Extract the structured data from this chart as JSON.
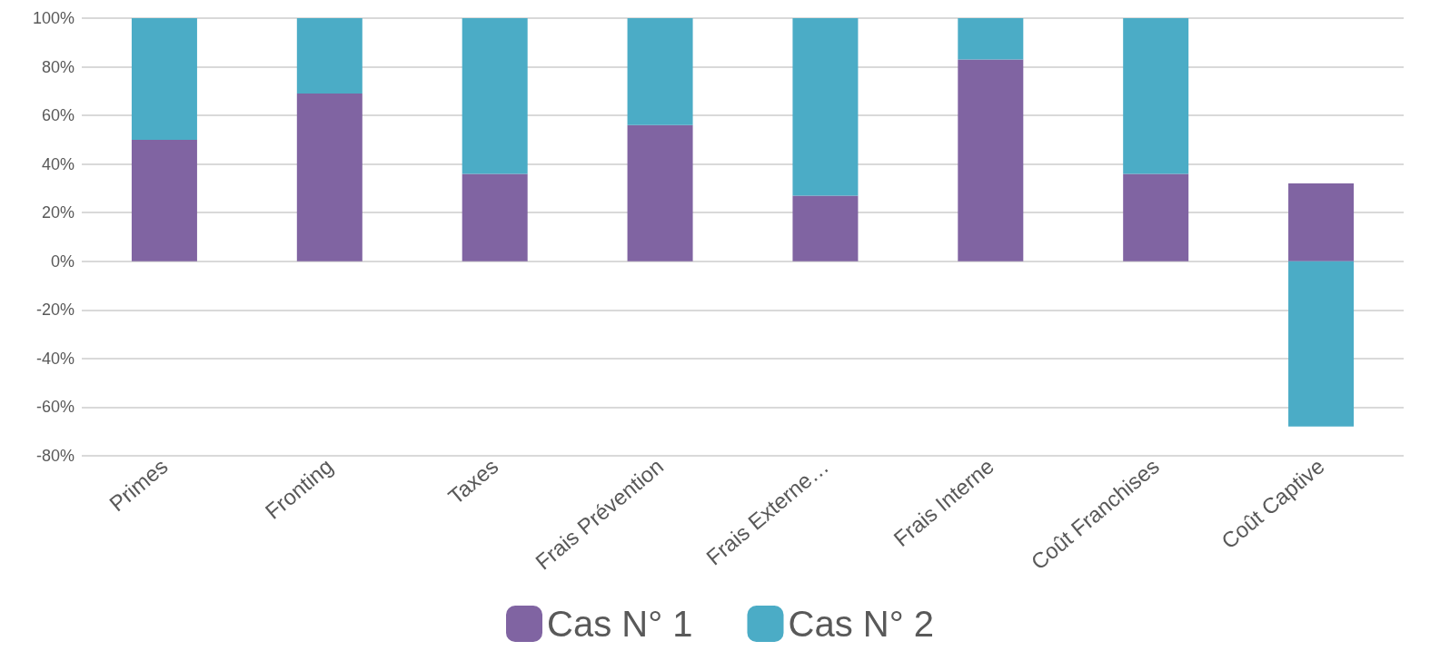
{
  "chart_data": {
    "type": "bar",
    "stacked": true,
    "categories": [
      "Primes",
      "Fronting",
      "Taxes",
      "Frais Prévention",
      "Frais Externe…",
      "Frais Interne",
      "Coût Franchises",
      "Coût Captive"
    ],
    "series": [
      {
        "name": "Cas N° 1",
        "color": "#8064a2",
        "values": [
          50,
          69,
          36,
          56,
          27,
          83,
          36,
          32
        ]
      },
      {
        "name": "Cas N° 2",
        "color": "#4bacc6",
        "values": [
          50,
          31,
          64,
          44,
          73,
          17,
          64,
          -68
        ]
      }
    ],
    "ylim": [
      -80,
      100
    ],
    "yticks": [
      {
        "value": -80,
        "label": "-80%"
      },
      {
        "value": -60,
        "label": "-60%"
      },
      {
        "value": -40,
        "label": "-40%"
      },
      {
        "value": -20,
        "label": "-20%"
      },
      {
        "value": 0,
        "label": "0%"
      },
      {
        "value": 20,
        "label": "20%"
      },
      {
        "value": 40,
        "label": "40%"
      },
      {
        "value": 60,
        "label": "60%"
      },
      {
        "value": 80,
        "label": "80%"
      },
      {
        "value": 100,
        "label": "100%"
      }
    ],
    "grid": true,
    "legend": "bottom"
  }
}
